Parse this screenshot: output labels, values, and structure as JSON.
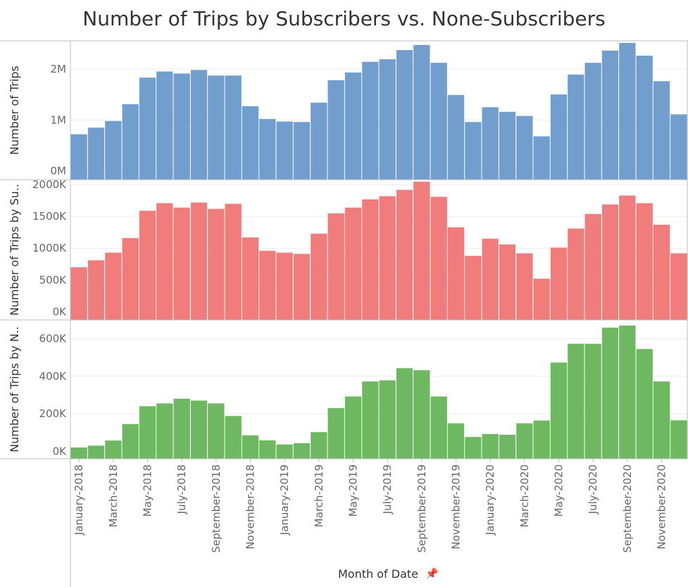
{
  "chart_data": {
    "type": "bar",
    "title": "Number of Trips by Subscribers vs. None-Subscribers",
    "xlabel": "Month of Date",
    "x_tick_labels": [
      "January-2018",
      "March-2018",
      "May-2018",
      "July-2018",
      "September-2018",
      "November-2018",
      "January-2019",
      "March-2019",
      "May-2019",
      "July-2019",
      "September-2019",
      "November-2019",
      "January-2020",
      "March-2020",
      "May-2020",
      "July-2020",
      "September-2020",
      "November-2020"
    ],
    "categories": [
      "January-2018",
      "February-2018",
      "March-2018",
      "April-2018",
      "May-2018",
      "June-2018",
      "July-2018",
      "August-2018",
      "September-2018",
      "October-2018",
      "November-2018",
      "December-2018",
      "January-2019",
      "February-2019",
      "March-2019",
      "April-2019",
      "May-2019",
      "June-2019",
      "July-2019",
      "August-2019",
      "September-2019",
      "October-2019",
      "November-2019",
      "December-2019",
      "January-2020",
      "February-2020",
      "March-2020",
      "April-2020",
      "May-2020",
      "June-2020",
      "July-2020",
      "August-2020",
      "September-2020",
      "October-2020",
      "November-2020",
      "December-2020"
    ],
    "panels": [
      {
        "ylabel": "Number of Trips",
        "color": "#729ECE",
        "ylim": [
          -170000,
          2550000
        ],
        "yticks": [
          0,
          1000000,
          2000000
        ],
        "ytick_labels": [
          "0M",
          "1M",
          "2M"
        ],
        "values": [
          720000,
          850000,
          980000,
          1310000,
          1830000,
          1950000,
          1910000,
          1980000,
          1870000,
          1870000,
          1270000,
          1020000,
          970000,
          960000,
          1340000,
          1780000,
          1930000,
          2140000,
          2190000,
          2370000,
          2470000,
          2120000,
          1490000,
          960000,
          1250000,
          1160000,
          1080000,
          680000,
          1500000,
          1890000,
          2120000,
          2360000,
          2510000,
          2260000,
          1760000,
          1110000
        ]
      },
      {
        "ylabel": "Number of Trips by Su..",
        "color": "#F07C7C",
        "ylim": [
          -130000,
          2080000
        ],
        "yticks": [
          0,
          500000,
          1000000,
          1500000,
          2000000
        ],
        "ytick_labels": [
          "0K",
          "500K",
          "1000K",
          "1500K",
          "2000K"
        ],
        "values": [
          700000,
          810000,
          930000,
          1160000,
          1590000,
          1710000,
          1640000,
          1720000,
          1620000,
          1700000,
          1170000,
          960000,
          930000,
          910000,
          1230000,
          1550000,
          1640000,
          1770000,
          1820000,
          1920000,
          2050000,
          1810000,
          1330000,
          880000,
          1150000,
          1060000,
          920000,
          520000,
          1010000,
          1310000,
          1540000,
          1690000,
          1830000,
          1710000,
          1370000,
          920000
        ]
      },
      {
        "ylabel": "Number of Trips by N..",
        "color": "#6FB862",
        "ylim": [
          -40000,
          700000
        ],
        "yticks": [
          0,
          200000,
          400000,
          600000
        ],
        "ytick_labels": [
          "0K",
          "200K",
          "400K",
          "600K"
        ],
        "values": [
          20000,
          30000,
          57000,
          145000,
          240000,
          255000,
          280000,
          270000,
          255000,
          188000,
          85000,
          58000,
          36000,
          43000,
          102000,
          230000,
          292000,
          372000,
          378000,
          443000,
          432000,
          292000,
          149000,
          76000,
          92000,
          88000,
          149000,
          164000,
          473000,
          573000,
          573000,
          659000,
          670000,
          545000,
          372000,
          165000
        ]
      }
    ]
  }
}
